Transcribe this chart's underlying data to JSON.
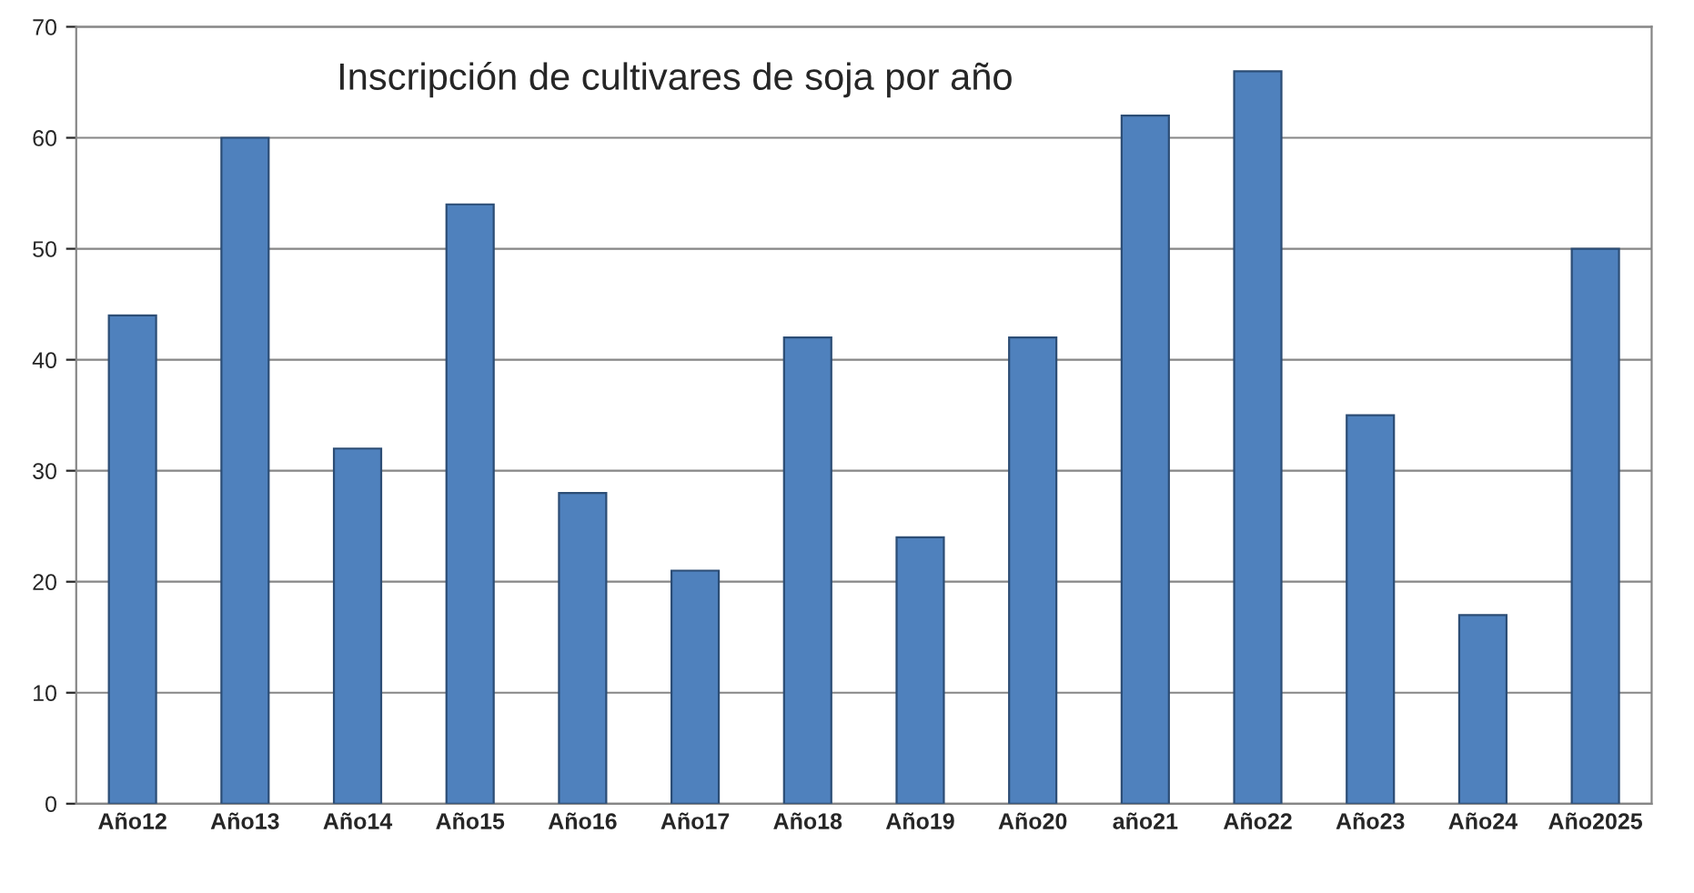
{
  "chart_data": {
    "type": "bar",
    "title": "Inscripción de cultivares de soja por año",
    "categories": [
      "Año12",
      "Año13",
      "Año14",
      "Año15",
      "Año16",
      "Año17",
      "Año18",
      "Año19",
      "Año20",
      "año21",
      "Año22",
      "Año23",
      "Año24",
      "Año2025"
    ],
    "values": [
      44,
      60,
      32,
      54,
      28,
      21,
      42,
      24,
      42,
      62,
      66,
      35,
      17,
      50
    ],
    "color": "#4f81bd",
    "ylim": [
      0,
      70
    ],
    "yticks": [
      0,
      10,
      20,
      30,
      40,
      50,
      60,
      70
    ],
    "grid": "y"
  }
}
